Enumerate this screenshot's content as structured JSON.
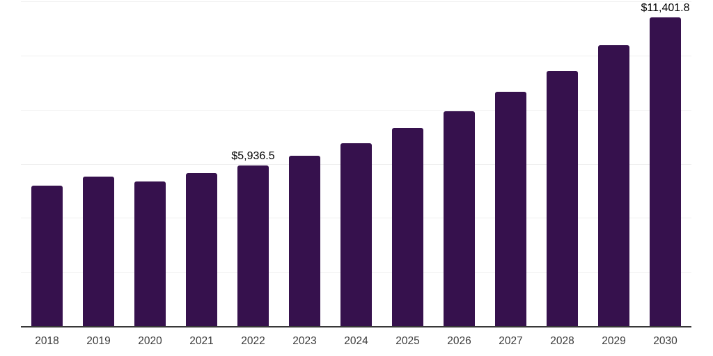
{
  "chart_data": {
    "type": "bar",
    "title": "",
    "xlabel": "",
    "ylabel": "",
    "categories": [
      "2018",
      "2019",
      "2020",
      "2021",
      "2022",
      "2023",
      "2024",
      "2025",
      "2026",
      "2027",
      "2028",
      "2029",
      "2030"
    ],
    "values": [
      5200,
      5515,
      5345,
      5650,
      5936.5,
      6290,
      6760,
      7320,
      7945,
      8650,
      9430,
      10390,
      11401.8
    ],
    "labeled_points": [
      {
        "category": "2022",
        "label": "$5,936.5"
      },
      {
        "category": "2030",
        "label": "$11,401.8"
      }
    ],
    "ylim": [
      0,
      12000
    ],
    "grid_interval": 2000,
    "grid": true,
    "legend": false,
    "y_tick_labels_visible": false,
    "colors": {
      "bar": "#36114d",
      "gridline": "#efefef",
      "axis_line": "#383838",
      "data_label_text": "#000000",
      "x_tick_text": "#3b3b3b",
      "background": "#ffffff"
    }
  }
}
